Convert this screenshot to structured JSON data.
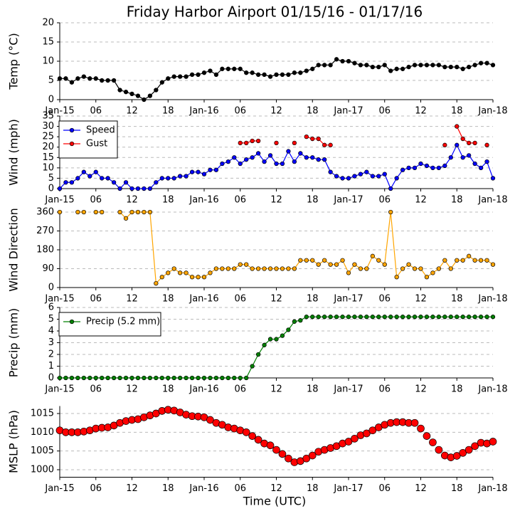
{
  "chart_data": [
    {
      "type": "line",
      "title": "Friday Harbor Airport 01/15/16 - 01/17/16",
      "ylabel": "Temp (°C)",
      "x": [
        0,
        1,
        2,
        3,
        4,
        5,
        6,
        7,
        8,
        9,
        10,
        11,
        12,
        13,
        14,
        15,
        16,
        17,
        18,
        19,
        20,
        21,
        22,
        23,
        24,
        25,
        26,
        27,
        28,
        29,
        30,
        31,
        32,
        33,
        34,
        35,
        36,
        37,
        38,
        39,
        40,
        41,
        42,
        43,
        44,
        45,
        46,
        47,
        48,
        49,
        50,
        51,
        52,
        53,
        54,
        55,
        56,
        57,
        58,
        59,
        60,
        61,
        62,
        63,
        64,
        65,
        66,
        67,
        68,
        69,
        70,
        71,
        72
      ],
      "series": [
        {
          "name": "Temp",
          "color": "black",
          "line": true,
          "values": [
            5.5,
            5.5,
            4.5,
            5.5,
            6,
            5.5,
            5.5,
            5,
            5,
            5,
            2.5,
            2,
            1.5,
            1,
            0,
            1,
            2.5,
            4.5,
            5.5,
            6,
            6,
            6,
            6.5,
            6.5,
            7,
            7.5,
            6.5,
            8,
            8,
            8,
            8,
            7,
            7,
            6.5,
            6.5,
            6,
            6.5,
            6.5,
            6.5,
            7,
            7,
            7.5,
            8,
            9,
            9,
            9,
            10.5,
            10,
            10,
            9.5,
            9,
            9,
            8.5,
            8.5,
            9,
            7.5,
            8,
            8,
            8.5,
            9,
            9,
            9,
            9,
            9,
            8.5,
            8.5,
            8.5,
            8,
            8.5,
            9,
            9.5,
            9.5,
            9
          ]
        }
      ],
      "xlim": [
        0,
        72
      ],
      "xticks": [
        {
          "value": 0,
          "label": "Jan-15"
        },
        {
          "value": 6,
          "label": "06"
        },
        {
          "value": 12,
          "label": "12"
        },
        {
          "value": 18,
          "label": "18"
        },
        {
          "value": 24,
          "label": "Jan-16"
        },
        {
          "value": 30,
          "label": "06"
        },
        {
          "value": 36,
          "label": "12"
        },
        {
          "value": 42,
          "label": "18"
        },
        {
          "value": 48,
          "label": "Jan-17"
        },
        {
          "value": 54,
          "label": "06"
        },
        {
          "value": 60,
          "label": "12"
        },
        {
          "value": 66,
          "label": "18"
        },
        {
          "value": 72,
          "label": "Jan-18"
        }
      ],
      "ylim": [
        0,
        20
      ],
      "yticks": [
        0,
        5,
        10,
        15,
        20
      ],
      "grid": true
    },
    {
      "type": "line",
      "ylabel": "Wind (mph)",
      "legend": "upper left",
      "x": [
        0,
        1,
        2,
        3,
        4,
        5,
        6,
        7,
        8,
        9,
        10,
        11,
        12,
        13,
        14,
        15,
        16,
        17,
        18,
        19,
        20,
        21,
        22,
        23,
        24,
        25,
        26,
        27,
        28,
        29,
        30,
        31,
        32,
        33,
        34,
        35,
        36,
        37,
        38,
        39,
        40,
        41,
        42,
        43,
        44,
        45,
        46,
        47,
        48,
        49,
        50,
        51,
        52,
        53,
        54,
        55,
        56,
        57,
        58,
        59,
        60,
        61,
        62,
        63,
        64,
        65,
        66,
        67,
        68,
        69,
        70,
        71,
        72
      ],
      "series": [
        {
          "name": "Speed",
          "color": "blue",
          "line": true,
          "values": [
            0,
            3,
            3,
            5,
            8,
            6,
            8,
            5,
            5,
            3,
            0,
            3,
            0,
            0,
            0,
            0,
            3,
            5,
            5,
            5,
            6,
            6,
            8,
            8,
            7,
            9,
            9,
            12,
            13,
            15,
            12,
            14,
            15,
            17,
            13,
            16,
            12,
            12,
            18,
            13,
            17,
            15,
            15,
            14,
            14,
            8,
            6,
            5,
            5,
            6,
            7,
            8,
            6,
            6,
            7,
            0,
            5,
            9,
            10,
            10,
            12,
            11,
            10,
            10,
            11,
            15,
            21,
            15,
            16,
            12,
            10,
            13,
            5
          ]
        },
        {
          "name": "Gust",
          "color": "red",
          "line": true,
          "values": [
            null,
            null,
            null,
            null,
            null,
            null,
            null,
            null,
            null,
            null,
            null,
            null,
            null,
            null,
            null,
            null,
            null,
            null,
            null,
            null,
            null,
            null,
            null,
            null,
            null,
            null,
            null,
            null,
            null,
            null,
            22,
            22,
            23,
            23,
            null,
            null,
            22,
            null,
            null,
            22,
            null,
            25,
            24,
            24,
            21,
            21,
            null,
            null,
            null,
            null,
            null,
            null,
            null,
            null,
            null,
            null,
            null,
            null,
            null,
            null,
            null,
            null,
            null,
            null,
            21,
            null,
            30,
            24,
            22,
            22,
            null,
            21,
            null
          ]
        }
      ],
      "xlim": [
        0,
        72
      ],
      "xticks": [
        {
          "value": 0,
          "label": "Jan-15"
        },
        {
          "value": 6,
          "label": "06"
        },
        {
          "value": 12,
          "label": "12"
        },
        {
          "value": 18,
          "label": "18"
        },
        {
          "value": 24,
          "label": "Jan-16"
        },
        {
          "value": 30,
          "label": "06"
        },
        {
          "value": 36,
          "label": "12"
        },
        {
          "value": 42,
          "label": "18"
        },
        {
          "value": 48,
          "label": "Jan-17"
        },
        {
          "value": 54,
          "label": "06"
        },
        {
          "value": 60,
          "label": "12"
        },
        {
          "value": 66,
          "label": "18"
        },
        {
          "value": 72,
          "label": "Jan-18"
        }
      ],
      "ylim": [
        0,
        35
      ],
      "yticks": [
        0,
        5,
        10,
        15,
        20,
        25,
        30,
        35
      ],
      "grid": true
    },
    {
      "type": "line",
      "ylabel": "Wind Direction",
      "x": [
        0,
        1,
        2,
        3,
        4,
        5,
        6,
        7,
        8,
        9,
        10,
        11,
        12,
        13,
        14,
        15,
        16,
        17,
        18,
        19,
        20,
        21,
        22,
        23,
        24,
        25,
        26,
        27,
        28,
        29,
        30,
        31,
        32,
        33,
        34,
        35,
        36,
        37,
        38,
        39,
        40,
        41,
        42,
        43,
        44,
        45,
        46,
        47,
        48,
        49,
        50,
        51,
        52,
        53,
        54,
        55,
        56,
        57,
        58,
        59,
        60,
        61,
        62,
        63,
        64,
        65,
        66,
        67,
        68,
        69,
        70,
        71,
        72
      ],
      "series": [
        {
          "name": "Direction",
          "color": "orange",
          "line": true,
          "values": [
            360,
            null,
            null,
            360,
            360,
            null,
            360,
            360,
            null,
            null,
            360,
            330,
            360,
            360,
            360,
            360,
            20,
            50,
            70,
            90,
            70,
            70,
            50,
            50,
            50,
            70,
            90,
            90,
            90,
            90,
            110,
            110,
            90,
            90,
            90,
            90,
            90,
            90,
            90,
            90,
            130,
            130,
            130,
            110,
            130,
            110,
            110,
            130,
            70,
            110,
            90,
            90,
            150,
            130,
            110,
            360,
            50,
            90,
            110,
            90,
            90,
            50,
            70,
            90,
            130,
            90,
            130,
            130,
            150,
            130,
            130,
            130,
            110
          ]
        }
      ],
      "xlim": [
        0,
        72
      ],
      "xticks": [
        {
          "value": 0,
          "label": "Jan-15"
        },
        {
          "value": 6,
          "label": "06"
        },
        {
          "value": 12,
          "label": "12"
        },
        {
          "value": 18,
          "label": "18"
        },
        {
          "value": 24,
          "label": "Jan-16"
        },
        {
          "value": 30,
          "label": "06"
        },
        {
          "value": 36,
          "label": "12"
        },
        {
          "value": 42,
          "label": "18"
        },
        {
          "value": 48,
          "label": "Jan-17"
        },
        {
          "value": 54,
          "label": "06"
        },
        {
          "value": 60,
          "label": "12"
        },
        {
          "value": 66,
          "label": "18"
        },
        {
          "value": 72,
          "label": "Jan-18"
        }
      ],
      "ylim": [
        0,
        360
      ],
      "yticks": [
        0,
        90,
        180,
        270,
        360
      ],
      "grid": true
    },
    {
      "type": "line",
      "ylabel": "Precip (mm)",
      "legend": "upper left",
      "x": [
        0,
        1,
        2,
        3,
        4,
        5,
        6,
        7,
        8,
        9,
        10,
        11,
        12,
        13,
        14,
        15,
        16,
        17,
        18,
        19,
        20,
        21,
        22,
        23,
        24,
        25,
        26,
        27,
        28,
        29,
        30,
        31,
        32,
        33,
        34,
        35,
        36,
        37,
        38,
        39,
        40,
        41,
        42,
        43,
        44,
        45,
        46,
        47,
        48,
        49,
        50,
        51,
        52,
        53,
        54,
        55,
        56,
        57,
        58,
        59,
        60,
        61,
        62,
        63,
        64,
        65,
        66,
        67,
        68,
        69,
        70,
        71,
        72
      ],
      "series": [
        {
          "name": "Precip (5.2 mm)",
          "color": "green",
          "line": true,
          "values": [
            0,
            0,
            0,
            0,
            0,
            0,
            0,
            0,
            0,
            0,
            0,
            0,
            0,
            0,
            0,
            0,
            0,
            0,
            0,
            0,
            0,
            0,
            0,
            0,
            0,
            0,
            0,
            0,
            0,
            0,
            0,
            0,
            1.0,
            2.0,
            2.8,
            3.3,
            3.3,
            3.6,
            4.1,
            4.8,
            4.9,
            5.2,
            5.2,
            5.2,
            5.2,
            5.2,
            5.2,
            5.2,
            5.2,
            5.2,
            5.2,
            5.2,
            5.2,
            5.2,
            5.2,
            5.2,
            5.2,
            5.2,
            5.2,
            5.2,
            5.2,
            5.2,
            5.2,
            5.2,
            5.2,
            5.2,
            5.2,
            5.2,
            5.2,
            5.2,
            5.2,
            5.2,
            5.2
          ]
        }
      ],
      "xlim": [
        0,
        72
      ],
      "xticks": [
        {
          "value": 0,
          "label": "Jan-15"
        },
        {
          "value": 6,
          "label": "06"
        },
        {
          "value": 12,
          "label": "12"
        },
        {
          "value": 18,
          "label": "18"
        },
        {
          "value": 24,
          "label": "Jan-16"
        },
        {
          "value": 30,
          "label": "06"
        },
        {
          "value": 36,
          "label": "12"
        },
        {
          "value": 42,
          "label": "18"
        },
        {
          "value": 48,
          "label": "Jan-17"
        },
        {
          "value": 54,
          "label": "06"
        },
        {
          "value": 60,
          "label": "12"
        },
        {
          "value": 66,
          "label": "18"
        },
        {
          "value": 72,
          "label": "Jan-18"
        }
      ],
      "ylim": [
        0,
        6
      ],
      "yticks": [
        0,
        1,
        2,
        3,
        4,
        5,
        6
      ],
      "grid": true
    },
    {
      "type": "line",
      "ylabel": "MSLP (hPa)",
      "xlabel": "Time (UTC)",
      "x": [
        0,
        1,
        2,
        3,
        4,
        5,
        6,
        7,
        8,
        9,
        10,
        11,
        12,
        13,
        14,
        15,
        16,
        17,
        18,
        19,
        20,
        21,
        22,
        23,
        24,
        25,
        26,
        27,
        28,
        29,
        30,
        31,
        32,
        33,
        34,
        35,
        36,
        37,
        38,
        39,
        40,
        41,
        42,
        43,
        44,
        45,
        46,
        47,
        48,
        49,
        50,
        51,
        52,
        53,
        54,
        55,
        56,
        57,
        58,
        59,
        60,
        61,
        62,
        63,
        64,
        65,
        66,
        67,
        68,
        69,
        70,
        71,
        72
      ],
      "series": [
        {
          "name": "MSLP",
          "color": "red",
          "line": false,
          "values": [
            1010.5,
            1010,
            1010,
            1010,
            1010.2,
            1010.5,
            1011,
            1011.2,
            1011.3,
            1011.8,
            1012.5,
            1013,
            1013.3,
            1013.5,
            1014,
            1014.5,
            1015,
            1015.7,
            1016,
            1015.8,
            1015.3,
            1014.7,
            1014.3,
            1014.2,
            1014,
            1013.3,
            1012.5,
            1012,
            1011.3,
            1011,
            1010.5,
            1010,
            1009,
            1008,
            1007,
            1006.5,
            1005.3,
            1004.2,
            1003,
            1002,
            1002.3,
            1003,
            1003.8,
            1004.8,
            1005.3,
            1005.8,
            1006.3,
            1007,
            1007.5,
            1008.3,
            1009.2,
            1009.7,
            1010.5,
            1011.3,
            1012,
            1012.5,
            1012.7,
            1012.7,
            1012.5,
            1012.5,
            1011,
            1009,
            1007.3,
            1005.3,
            1003.8,
            1003.3,
            1003.7,
            1004.5,
            1005.3,
            1006.3,
            1007.2,
            1007,
            1007.5
          ]
        }
      ],
      "xlim": [
        0,
        72
      ],
      "xticks": [
        {
          "value": 0,
          "label": "Jan-15"
        },
        {
          "value": 6,
          "label": "06"
        },
        {
          "value": 12,
          "label": "12"
        },
        {
          "value": 18,
          "label": "18"
        },
        {
          "value": 24,
          "label": "Jan-16"
        },
        {
          "value": 30,
          "label": "06"
        },
        {
          "value": 36,
          "label": "12"
        },
        {
          "value": 42,
          "label": "18"
        },
        {
          "value": 48,
          "label": "Jan-17"
        },
        {
          "value": 54,
          "label": "06"
        },
        {
          "value": 60,
          "label": "12"
        },
        {
          "value": 66,
          "label": "18"
        },
        {
          "value": 72,
          "label": "Jan-18"
        }
      ],
      "ylim": [
        998,
        1017
      ],
      "yticks": [
        1000,
        1005,
        1010,
        1015
      ],
      "grid": true
    }
  ]
}
